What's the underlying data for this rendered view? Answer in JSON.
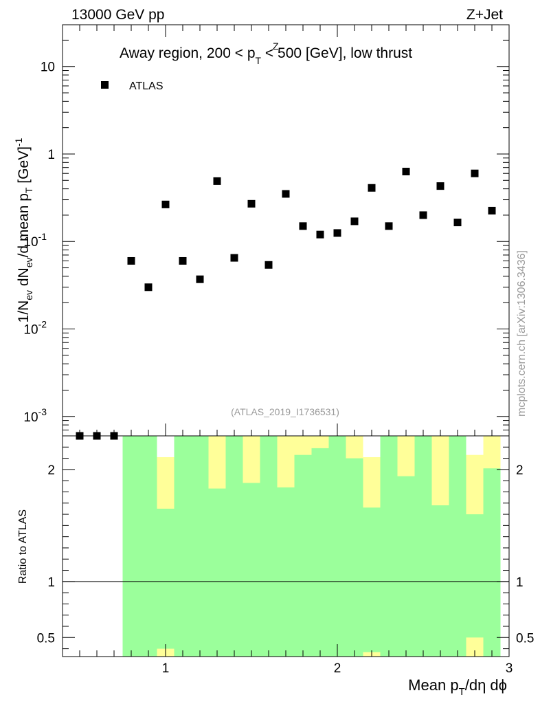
{
  "header": {
    "left_label": "13000 GeV pp",
    "right_label": "Z+Jet"
  },
  "annotations": {
    "region_title_pre": "Away region, 200 < p",
    "region_title_sup": "Z",
    "region_title_sub": "T",
    "region_title_post": " < 500 [GeV], low thrust",
    "analysis_id": "(ATLAS_2019_I1736531)",
    "watermark": "mcplots.cern.ch [arXiv:1306.3436]"
  },
  "colors": {
    "marker": "#000000",
    "band_inner": "#9bff9b",
    "band_outer": "#ffff99",
    "axis": "#000000",
    "label_gray": "#999999"
  },
  "chart_data": [
    {
      "type": "scatter",
      "panel": "main",
      "title": "Away region, 200 < p_T^Z < 500 [GeV], low thrust",
      "ylabel": {
        "pre": "1/N",
        "sub1": "ev",
        "mid": " dN",
        "sub2": "ev",
        "mid2": "/d mean p",
        "sub3": "T",
        "post": " [GeV]",
        "sup": "-1"
      },
      "yscale": "log",
      "xlim": [
        0.4,
        3.0
      ],
      "ylim": [
        0.0006,
        30
      ],
      "y_ticks": [
        {
          "value": 0.001,
          "base": "10",
          "exp": "-3"
        },
        {
          "value": 0.01,
          "base": "10",
          "exp": "-2"
        },
        {
          "value": 0.1,
          "base": "10",
          "exp": "-1"
        },
        {
          "value": 1,
          "base": "1",
          "exp": ""
        },
        {
          "value": 10,
          "base": "10",
          "exp": ""
        }
      ],
      "legend": {
        "entries": [
          "ATLAS"
        ],
        "position": "top-left"
      },
      "series": [
        {
          "name": "ATLAS",
          "marker": "square",
          "x": [
            0.5,
            0.6,
            0.7,
            0.8,
            0.9,
            1.0,
            1.1,
            1.2,
            1.3,
            1.4,
            1.5,
            1.6,
            1.7,
            1.8,
            1.9,
            2.0,
            2.1,
            2.2,
            2.3,
            2.4,
            2.5,
            2.6,
            2.7,
            2.8,
            2.9
          ],
          "y": [
            0.0006,
            0.0006,
            0.0006,
            0.06,
            0.03,
            0.265,
            0.06,
            0.037,
            0.49,
            0.065,
            0.27,
            0.054,
            0.35,
            0.15,
            0.12,
            0.125,
            0.17,
            0.41,
            0.15,
            0.63,
            0.2,
            0.43,
            0.165,
            0.6,
            0.225
          ]
        }
      ]
    },
    {
      "type": "area",
      "panel": "ratio",
      "ylabel": "Ratio to ATLAS",
      "xlabel": {
        "pre": "Mean p",
        "sub": "T",
        "post": "/dη dϕ"
      },
      "xlim": [
        0.4,
        3.0
      ],
      "ylim": [
        0.33,
        2.3
      ],
      "x_ticks": [
        {
          "value": 1,
          "label": "1"
        },
        {
          "value": 2,
          "label": "2"
        },
        {
          "value": 3,
          "label": "3"
        }
      ],
      "y_ticks": [
        {
          "value": 0.5,
          "label": "0.5"
        },
        {
          "value": 1,
          "label": "1"
        },
        {
          "value": 2,
          "label": "2"
        }
      ],
      "reference_line": 1,
      "bins": {
        "edges": [
          0.75,
          0.85,
          0.95,
          1.05,
          1.15,
          1.25,
          1.35,
          1.45,
          1.55,
          1.65,
          1.75,
          1.85,
          1.95,
          2.05,
          2.15,
          2.25,
          2.35,
          2.45,
          2.55,
          2.65,
          2.75,
          2.85,
          2.95
        ],
        "green_low": [
          0.33,
          0.33,
          0.4,
          0.33,
          0.33,
          0.33,
          0.33,
          0.33,
          0.33,
          0.33,
          0.33,
          0.33,
          0.33,
          0.33,
          0.37,
          0.33,
          0.33,
          0.33,
          0.33,
          0.33,
          0.5,
          0.33
        ],
        "green_high": [
          2.3,
          2.3,
          1.65,
          2.3,
          2.3,
          1.83,
          2.3,
          1.88,
          2.3,
          1.84,
          2.13,
          2.19,
          2.3,
          2.1,
          1.66,
          2.3,
          1.94,
          2.3,
          1.68,
          2.3,
          1.6,
          2.01
        ],
        "yellow_low": [
          0.33,
          0.33,
          0.33,
          0.33,
          0.33,
          0.33,
          0.33,
          0.33,
          0.33,
          0.33,
          0.33,
          0.33,
          0.33,
          0.33,
          0.33,
          0.33,
          0.33,
          0.33,
          0.33,
          0.33,
          0.33,
          0.33
        ],
        "yellow_high": [
          2.3,
          2.3,
          2.11,
          2.3,
          2.3,
          2.3,
          2.3,
          2.3,
          2.3,
          2.3,
          2.3,
          2.3,
          2.3,
          2.3,
          2.11,
          2.3,
          2.3,
          2.3,
          2.3,
          2.3,
          2.13,
          2.3
        ]
      }
    }
  ]
}
